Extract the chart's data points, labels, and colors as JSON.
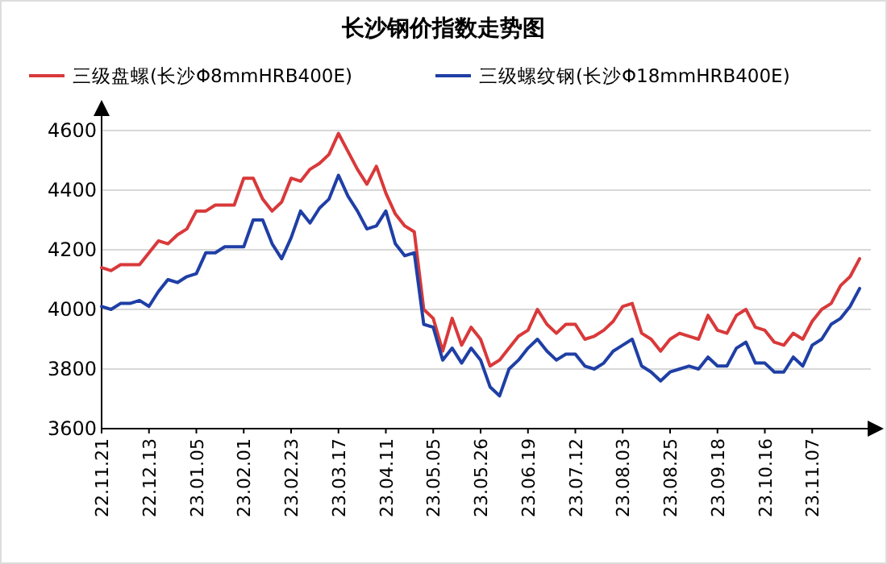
{
  "chart_data": {
    "type": "line",
    "title": "长沙钢价指数走势图",
    "categories": [
      "22.11.21",
      null,
      null,
      null,
      null,
      "22.12.13",
      null,
      null,
      null,
      null,
      "23.01.05",
      null,
      null,
      null,
      null,
      "23.02.01",
      null,
      null,
      null,
      null,
      "23.02.23",
      null,
      null,
      null,
      null,
      "23.03.17",
      null,
      null,
      null,
      null,
      "23.04.11",
      null,
      null,
      null,
      null,
      "23.05.05",
      null,
      null,
      null,
      null,
      "23.05.26",
      null,
      null,
      null,
      null,
      "23.06.19",
      null,
      null,
      null,
      null,
      "23.07.12",
      null,
      null,
      null,
      null,
      "23.08.03",
      null,
      null,
      null,
      null,
      "23.08.25",
      null,
      null,
      null,
      null,
      "23.09.18",
      null,
      null,
      null,
      null,
      "23.10.16",
      null,
      null,
      null,
      null,
      "23.11.07",
      null,
      null,
      null,
      null,
      null
    ],
    "series": [
      {
        "name": "三级盘螺(长沙Φ8mmHRB400E)",
        "color": "#d9393a",
        "values": [
          4140,
          4130,
          4150,
          4150,
          4150,
          4190,
          4230,
          4220,
          4250,
          4270,
          4330,
          4330,
          4350,
          4350,
          4350,
          4440,
          4440,
          4370,
          4330,
          4360,
          4440,
          4430,
          4470,
          4490,
          4520,
          4590,
          4530,
          4470,
          4420,
          4480,
          4390,
          4320,
          4280,
          4260,
          4000,
          3970,
          3860,
          3970,
          3880,
          3940,
          3900,
          3810,
          3830,
          3870,
          3910,
          3930,
          4000,
          3950,
          3920,
          3950,
          3950,
          3900,
          3910,
          3930,
          3960,
          4010,
          4020,
          3920,
          3900,
          3860,
          3900,
          3920,
          3910,
          3900,
          3980,
          3930,
          3920,
          3980,
          4000,
          3940,
          3930,
          3890,
          3880,
          3920,
          3900,
          3960,
          4000,
          4020,
          4080,
          4110,
          4170
        ]
      },
      {
        "name": "三级螺纹钢(长沙Φ18mmHRB400E)",
        "color": "#1f3fa5",
        "values": [
          4010,
          4000,
          4020,
          4020,
          4030,
          4010,
          4060,
          4100,
          4090,
          4110,
          4120,
          4190,
          4190,
          4210,
          4210,
          4210,
          4300,
          4300,
          4220,
          4170,
          4240,
          4330,
          4290,
          4340,
          4370,
          4450,
          4380,
          4330,
          4270,
          4280,
          4330,
          4220,
          4180,
          4190,
          3950,
          3940,
          3830,
          3870,
          3820,
          3870,
          3830,
          3740,
          3710,
          3800,
          3830,
          3870,
          3900,
          3860,
          3830,
          3850,
          3850,
          3810,
          3800,
          3820,
          3860,
          3880,
          3900,
          3810,
          3790,
          3760,
          3790,
          3800,
          3810,
          3800,
          3840,
          3810,
          3810,
          3870,
          3890,
          3820,
          3820,
          3790,
          3790,
          3840,
          3810,
          3880,
          3900,
          3950,
          3970,
          4010,
          4070
        ]
      }
    ],
    "ylim": [
      3600,
      4600
    ],
    "yticks": [
      3600,
      3800,
      4000,
      4200,
      4400,
      4600
    ],
    "grid": "y",
    "legend": "top"
  }
}
